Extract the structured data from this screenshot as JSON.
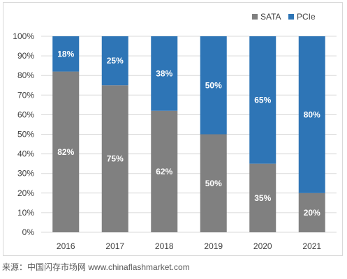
{
  "chart_data": {
    "type": "bar",
    "stacked": true,
    "categories": [
      "2016",
      "2017",
      "2018",
      "2019",
      "2020",
      "2021"
    ],
    "series": [
      {
        "name": "SATA",
        "color": "#808080",
        "values": [
          82,
          75,
          62,
          50,
          35,
          20
        ],
        "labels": [
          "82%",
          "75%",
          "62%",
          "50%",
          "35%",
          "20%"
        ]
      },
      {
        "name": "PCIe",
        "color": "#2e75b6",
        "values": [
          18,
          25,
          38,
          50,
          65,
          80
        ],
        "labels": [
          "18%",
          "25%",
          "38%",
          "50%",
          "65%",
          "80%"
        ]
      }
    ],
    "yticks": [
      "0%",
      "10%",
      "20%",
      "30%",
      "40%",
      "50%",
      "60%",
      "70%",
      "80%",
      "90%",
      "100%"
    ],
    "ylim": [
      0,
      100
    ],
    "grid": true,
    "gridline_color": "#d9d9d9",
    "legend_position": "top-right"
  },
  "source_note": "来源：中国闪存市场网 www.chinaflashmarket.com"
}
